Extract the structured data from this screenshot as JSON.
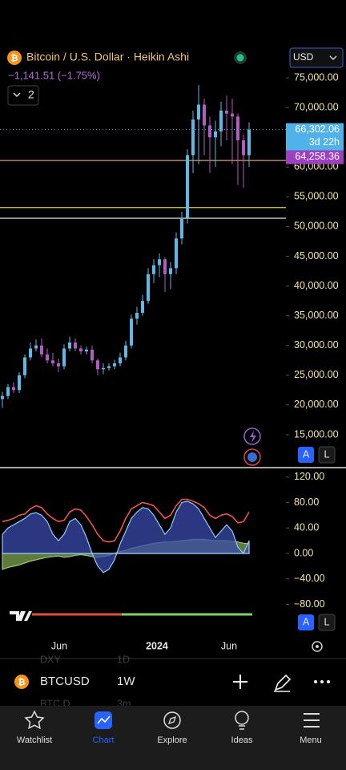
{
  "header": {
    "icon": "₿",
    "title": "Bitcoin / U.S. Dollar · Heikin Ashi",
    "change": "−1,141.51 (−1.75%)",
    "indicator_count": "2",
    "currency": "USD"
  },
  "chart_data": [
    {
      "type": "candlestick",
      "up_color": "#5fb8e6",
      "down_color": "#b35cc4",
      "open": [
        21000,
        21500,
        23000,
        22500,
        25000,
        28000,
        29500,
        30000,
        28500,
        27500,
        27000,
        26500,
        29500,
        30500,
        29500,
        29000,
        29300,
        27500,
        26000,
        26200,
        26500,
        27000,
        28000,
        30000,
        34500,
        35500,
        37500,
        42000,
        43500,
        44500,
        42000,
        43000,
        48000,
        51500,
        62000,
        68000,
        70500,
        67000,
        65000,
        66000,
        69500,
        69000,
        68500,
        64500,
        62000
      ],
      "close": [
        21500,
        23000,
        22500,
        25000,
        28000,
        29500,
        30000,
        28500,
        27500,
        27000,
        26500,
        29500,
        30500,
        29500,
        29000,
        29300,
        27500,
        26000,
        26200,
        26500,
        27000,
        28000,
        30000,
        34500,
        35500,
        37500,
        42000,
        43500,
        44500,
        42000,
        43000,
        48000,
        51500,
        62000,
        68000,
        70500,
        67000,
        65000,
        66000,
        69500,
        69000,
        68500,
        64500,
        62000,
        66302
      ],
      "high": [
        22200,
        23500,
        23800,
        25500,
        28500,
        30500,
        31000,
        31200,
        29500,
        28800,
        27800,
        30200,
        31500,
        31200,
        30000,
        29800,
        30000,
        27800,
        27000,
        27000,
        27600,
        28800,
        30800,
        35200,
        36500,
        38500,
        43000,
        44500,
        45500,
        44800,
        44000,
        49000,
        52500,
        63000,
        69500,
        73800,
        71500,
        68500,
        67800,
        71000,
        72000,
        71500,
        69000,
        65500,
        67500
      ],
      "low": [
        19500,
        21000,
        22000,
        22000,
        24500,
        27500,
        29000,
        28000,
        27000,
        26500,
        25500,
        26000,
        29000,
        29000,
        28500,
        28500,
        27000,
        25000,
        25200,
        25800,
        26000,
        26500,
        27500,
        29500,
        33500,
        35000,
        37000,
        40500,
        41500,
        39000,
        39500,
        42000,
        47000,
        50500,
        59000,
        60500,
        62000,
        59000,
        60000,
        63500,
        64500,
        60500,
        57000,
        56500,
        60000
      ],
      "xlim": [
        -0.43,
        61.29
      ],
      "xticks": [
        {
          "value": 10.14,
          "label": "Jun"
        },
        {
          "value": 27.57,
          "label": "2024"
        },
        {
          "value": 40.43,
          "label": "Jun"
        }
      ],
      "ylim": [
        9600,
        80000
      ],
      "yticks": [
        {
          "value": 75000,
          "label": "75,000.00"
        },
        {
          "value": 70000,
          "label": "70,000.00"
        },
        {
          "value": 65000,
          "label": "65,000.00"
        },
        {
          "value": 60000,
          "label": "60,000.00"
        },
        {
          "value": 55000,
          "label": "55,000.00"
        },
        {
          "value": 50000,
          "label": "50,000.00"
        },
        {
          "value": 45000,
          "label": "45,000.00"
        },
        {
          "value": 40000,
          "label": "40,000.00"
        },
        {
          "value": 35000,
          "label": "35,000.00"
        },
        {
          "value": 30000,
          "label": "30,000.00"
        },
        {
          "value": 25000,
          "label": "25,000.00"
        },
        {
          "value": 20000,
          "label": "20,000.00"
        },
        {
          "value": 15000,
          "label": "15,000.00"
        }
      ],
      "levels": [
        {
          "value": 61100,
          "color": "#e0a070"
        },
        {
          "value": 53200,
          "color": "#e6d34a"
        },
        {
          "value": 51400,
          "color": "#f0f0f0"
        }
      ],
      "last_price": {
        "value": 66302.06,
        "label": "66,302.06",
        "countdown": "3d 22h",
        "color": "#4fb3ea"
      },
      "prev_price": {
        "value": 64258.36,
        "label": "64,258.36",
        "color": "#9c3fc0"
      },
      "scale_buttons": [
        "A",
        "L"
      ]
    },
    {
      "type": "oscillator",
      "ylim": [
        -126,
        131
      ],
      "yticks": [
        {
          "value": 120,
          "label": "120.00"
        },
        {
          "value": 80,
          "label": "80.00"
        },
        {
          "value": 40,
          "label": "40.00"
        },
        {
          "value": 0,
          "label": "0.00"
        },
        {
          "value": -40,
          "label": "−40.00"
        },
        {
          "value": -80,
          "label": "−80.00"
        }
      ],
      "series": [
        {
          "color": "#9ccc65",
          "values": [
            -25,
            -22,
            -20,
            -18,
            -15,
            -12,
            -10,
            -8,
            -6,
            -5,
            -4,
            -6,
            -5,
            -3,
            -2,
            -3,
            -5,
            -6,
            -5,
            -3,
            0,
            3,
            5,
            8,
            10,
            12,
            14,
            16,
            17,
            18,
            18,
            19,
            20,
            21,
            22,
            22,
            22,
            21,
            20,
            20,
            20,
            19,
            18,
            16,
            15
          ]
        },
        {
          "color": "#3949ab",
          "values": [
            30,
            40,
            45,
            50,
            55,
            62,
            64,
            60,
            50,
            30,
            20,
            30,
            50,
            55,
            45,
            25,
            0,
            -20,
            -30,
            -25,
            -10,
            15,
            35,
            55,
            65,
            72,
            70,
            60,
            45,
            30,
            40,
            65,
            80,
            82,
            78,
            70,
            55,
            40,
            25,
            35,
            45,
            35,
            10,
            0,
            20
          ]
        },
        {
          "color": "#ef5350",
          "values": [
            50,
            52,
            55,
            60,
            62,
            70,
            75,
            72,
            62,
            55,
            50,
            52,
            65,
            70,
            68,
            58,
            45,
            30,
            20,
            18,
            20,
            35,
            55,
            70,
            75,
            80,
            78,
            75,
            65,
            55,
            60,
            75,
            85,
            85,
            82,
            78,
            72,
            60,
            55,
            60,
            62,
            58,
            48,
            50,
            65
          ]
        }
      ],
      "scale_buttons": [
        "A",
        "L"
      ]
    }
  ],
  "toolbar": {
    "icon": "₿",
    "symbol": "BTCUSD",
    "interval": "1W",
    "hidden_rows": [
      "DXY",
      "1D",
      "BTC.D",
      "3m"
    ]
  },
  "nav": {
    "items": [
      "Watchlist",
      "Chart",
      "Explore",
      "Ideas",
      "Menu"
    ],
    "active": 1
  }
}
